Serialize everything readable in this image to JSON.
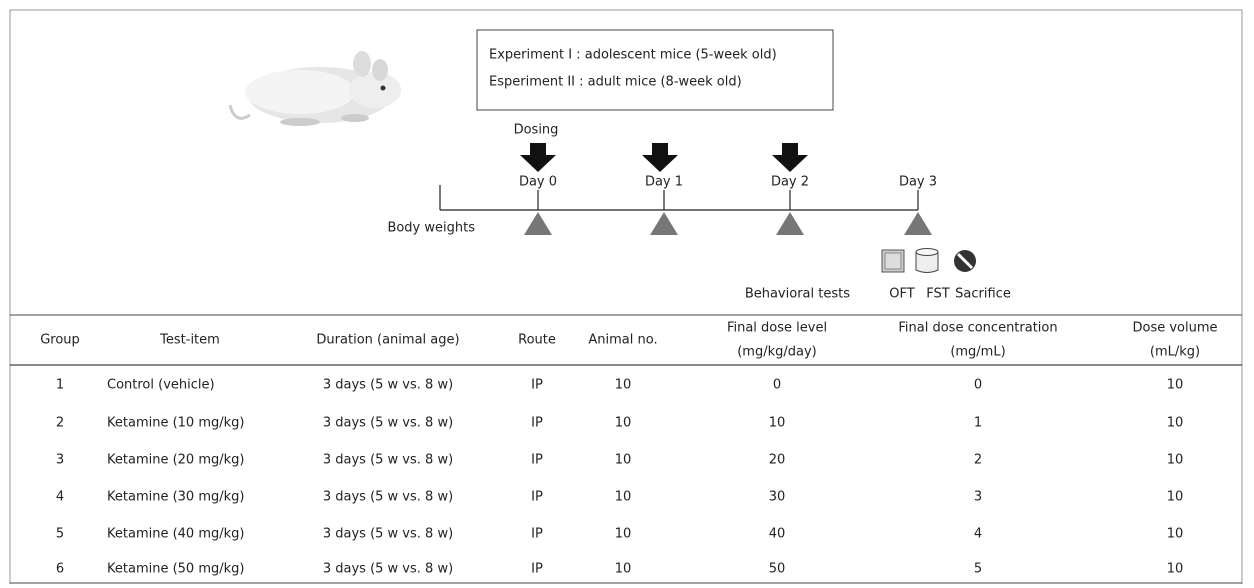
{
  "experiments": [
    "Experiment I : adolescent mice (5-week old)",
    "Esperiment II : adult mice (8-week old)"
  ],
  "timeline": {
    "dosing_label": "Dosing",
    "days": [
      "Day 0",
      "Day 1",
      "Day 2",
      "Day 3"
    ],
    "body_weights_label": "Body weights",
    "behavioral_tests_label": "Behavioral tests",
    "icons": [
      "OFT",
      "FST",
      "Sacrifice"
    ]
  },
  "table": {
    "columns": [
      [
        "Group"
      ],
      [
        "Test-item"
      ],
      [
        "Duration (animal age)"
      ],
      [
        "Route"
      ],
      [
        "Animal no."
      ],
      [
        "Final dose level",
        "(mg/kg/day)"
      ],
      [
        "Final dose concentration",
        "(mg/mL)"
      ],
      [
        "Dose volume",
        "(mL/kg)"
      ]
    ],
    "rows": [
      [
        "1",
        "Control (vehicle)",
        "3 days (5 w vs. 8 w)",
        "IP",
        "10",
        "0",
        "0",
        "10"
      ],
      [
        "2",
        "Ketamine (10 mg/kg)",
        "3 days (5 w vs. 8 w)",
        "IP",
        "10",
        "10",
        "1",
        "10"
      ],
      [
        "3",
        "Ketamine (20 mg/kg)",
        "3 days (5 w vs. 8 w)",
        "IP",
        "10",
        "20",
        "2",
        "10"
      ],
      [
        "4",
        "Ketamine (30 mg/kg)",
        "3 days (5 w vs. 8 w)",
        "IP",
        "10",
        "30",
        "3",
        "10"
      ],
      [
        "5",
        "Ketamine (40 mg/kg)",
        "3 days (5 w vs. 8 w)",
        "IP",
        "10",
        "40",
        "4",
        "10"
      ],
      [
        "6",
        "Ketamine (50 mg/kg)",
        "3 days (5 w vs. 8 w)",
        "IP",
        "10",
        "50",
        "5",
        "10"
      ]
    ]
  }
}
